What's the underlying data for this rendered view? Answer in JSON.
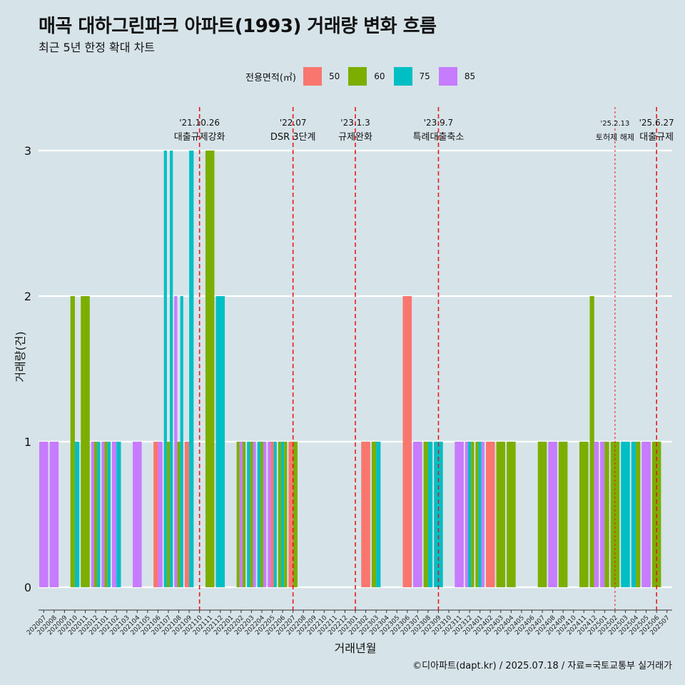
{
  "title": "매곡 대하그린파크 아파트(1993) 거래량 변화 흐름",
  "subtitle": "최근 5년 한정 확대 차트",
  "caption": "©디아파트(dapt.kr) / 2025.07.18 / 자료=국토교통부 실거래가",
  "chart_data": {
    "type": "bar",
    "xlabel": "거래년월",
    "ylabel": "거래량(건)",
    "ylim": [
      0,
      3
    ],
    "yticks": [
      0,
      1,
      2,
      3
    ],
    "legend": {
      "title": "전용면적(㎡)",
      "position": "top"
    },
    "series": [
      {
        "name": "50",
        "color": "#F8766D"
      },
      {
        "name": "60",
        "color": "#7CAE00"
      },
      {
        "name": "75",
        "color": "#00BFC4"
      },
      {
        "name": "85",
        "color": "#C77CFF"
      }
    ],
    "categories": [
      "202007",
      "202008",
      "202009",
      "202010",
      "202011",
      "202012",
      "202101",
      "202102",
      "202103",
      "202104",
      "202105",
      "202106",
      "202107",
      "202108",
      "202109",
      "202110",
      "202111",
      "202112",
      "202201",
      "202202",
      "202203",
      "202204",
      "202205",
      "202206",
      "202207",
      "202208",
      "202209",
      "202210",
      "202211",
      "202212",
      "202301",
      "202302",
      "202303",
      "202304",
      "202305",
      "202306",
      "202307",
      "202308",
      "202309",
      "202310",
      "202311",
      "202312",
      "202401",
      "202402",
      "202403",
      "202404",
      "202405",
      "202406",
      "202407",
      "202408",
      "202409",
      "202410",
      "202411",
      "202412",
      "202501",
      "202502",
      "202503",
      "202504",
      "202505",
      "202506",
      "202507"
    ],
    "bars": [
      {
        "month": "202007",
        "segments": [
          [
            "85",
            1
          ]
        ]
      },
      {
        "month": "202008",
        "segments": [
          [
            "85",
            1
          ]
        ]
      },
      {
        "month": "202010",
        "segments": [
          [
            "60",
            2
          ],
          [
            "75",
            1
          ]
        ]
      },
      {
        "month": "202011",
        "segments": [
          [
            "60",
            2
          ],
          [
            "60",
            2
          ]
        ]
      },
      {
        "month": "202012",
        "segments": [
          [
            "85",
            1
          ],
          [
            "60",
            1
          ],
          [
            "75",
            1
          ]
        ]
      },
      {
        "month": "202101",
        "segments": [
          [
            "85",
            1
          ],
          [
            "60",
            1
          ],
          [
            "75",
            1
          ]
        ]
      },
      {
        "month": "202102",
        "segments": [
          [
            "85",
            1
          ],
          [
            "75",
            1
          ]
        ]
      },
      {
        "month": "202104",
        "segments": [
          [
            "85",
            1
          ]
        ]
      },
      {
        "month": "202106",
        "segments": [
          [
            "50",
            1
          ],
          [
            "85",
            1
          ]
        ]
      },
      {
        "month": "202107",
        "segments": [
          [
            "75",
            3
          ],
          [
            "60",
            1
          ],
          [
            "75",
            3
          ]
        ]
      },
      {
        "month": "202108",
        "segments": [
          [
            "85",
            2
          ],
          [
            "60",
            1
          ],
          [
            "75",
            2
          ]
        ]
      },
      {
        "month": "202109",
        "segments": [
          [
            "50",
            1
          ],
          [
            "75",
            3
          ]
        ]
      },
      {
        "month": "202111",
        "segments": [
          [
            "60",
            3
          ]
        ]
      },
      {
        "month": "202112",
        "segments": [
          [
            "75",
            2
          ]
        ]
      },
      {
        "month": "202202",
        "segments": [
          [
            "60",
            1
          ],
          [
            "85",
            1
          ],
          [
            "60",
            1
          ]
        ]
      },
      {
        "month": "202203",
        "segments": [
          [
            "75",
            1
          ],
          [
            "60",
            1
          ],
          [
            "85",
            1
          ]
        ]
      },
      {
        "month": "202204",
        "segments": [
          [
            "75",
            1
          ],
          [
            "60",
            1
          ],
          [
            "85",
            1
          ]
        ]
      },
      {
        "month": "202205",
        "segments": [
          [
            "85",
            1
          ],
          [
            "50",
            1
          ],
          [
            "75",
            1
          ]
        ]
      },
      {
        "month": "202206",
        "segments": [
          [
            "60",
            1
          ],
          [
            "75",
            1
          ],
          [
            "60",
            1
          ]
        ]
      },
      {
        "month": "202207",
        "segments": [
          [
            "50",
            1
          ],
          [
            "60",
            1
          ]
        ]
      },
      {
        "month": "202302",
        "segments": [
          [
            "50",
            1
          ],
          [
            "50",
            1
          ]
        ]
      },
      {
        "month": "202303",
        "segments": [
          [
            "60",
            1
          ],
          [
            "75",
            1
          ]
        ]
      },
      {
        "month": "202306",
        "segments": [
          [
            "50",
            2
          ]
        ]
      },
      {
        "month": "202307",
        "segments": [
          [
            "85",
            1
          ]
        ]
      },
      {
        "month": "202308",
        "segments": [
          [
            "60",
            1
          ],
          [
            "75",
            1
          ]
        ]
      },
      {
        "month": "202309",
        "segments": [
          [
            "75",
            1
          ],
          [
            "75",
            1
          ]
        ]
      },
      {
        "month": "202311",
        "segments": [
          [
            "85",
            1
          ]
        ]
      },
      {
        "month": "202312",
        "segments": [
          [
            "85",
            1
          ],
          [
            "75",
            1
          ],
          [
            "60",
            1
          ]
        ]
      },
      {
        "month": "202401",
        "segments": [
          [
            "60",
            1
          ],
          [
            "75",
            1
          ],
          [
            "85",
            1
          ]
        ]
      },
      {
        "month": "202402",
        "segments": [
          [
            "50",
            1
          ]
        ]
      },
      {
        "month": "202403",
        "segments": [
          [
            "60",
            1
          ]
        ]
      },
      {
        "month": "202404",
        "segments": [
          [
            "60",
            1
          ]
        ]
      },
      {
        "month": "202407",
        "segments": [
          [
            "60",
            1
          ]
        ]
      },
      {
        "month": "202408",
        "segments": [
          [
            "85",
            1
          ]
        ]
      },
      {
        "month": "202409",
        "segments": [
          [
            "60",
            1
          ]
        ]
      },
      {
        "month": "202411",
        "segments": [
          [
            "60",
            1
          ]
        ]
      },
      {
        "month": "202412",
        "segments": [
          [
            "60",
            2
          ],
          [
            "85",
            1
          ]
        ]
      },
      {
        "month": "202501",
        "segments": [
          [
            "85",
            1
          ],
          [
            "60",
            1
          ]
        ]
      },
      {
        "month": "202502",
        "segments": [
          [
            "60",
            1
          ]
        ]
      },
      {
        "month": "202503",
        "segments": [
          [
            "75",
            1
          ]
        ]
      },
      {
        "month": "202504",
        "segments": [
          [
            "75",
            1
          ],
          [
            "60",
            1
          ]
        ]
      },
      {
        "month": "202505",
        "segments": [
          [
            "85",
            1
          ]
        ]
      },
      {
        "month": "202506",
        "segments": [
          [
            "60",
            1
          ]
        ]
      }
    ],
    "events": [
      {
        "date": "'21.10.26",
        "label": "대출규제강화",
        "at": "202110",
        "style": "dashed"
      },
      {
        "date": "'22.07",
        "label": "DSR 3단계",
        "at": "202207",
        "style": "dashed"
      },
      {
        "date": "'23.1.3",
        "label": "규제완화",
        "at": "202301",
        "style": "dashed"
      },
      {
        "date": "'23.9.7",
        "label": "특례대출축소",
        "at": "202309",
        "style": "dashed"
      },
      {
        "date": "'25.2.13",
        "label": "토허제 해제",
        "at": "202502",
        "style": "dotted"
      },
      {
        "date": "'25.6.27",
        "label": "대출규제",
        "at": "202506",
        "style": "dashed"
      }
    ]
  }
}
